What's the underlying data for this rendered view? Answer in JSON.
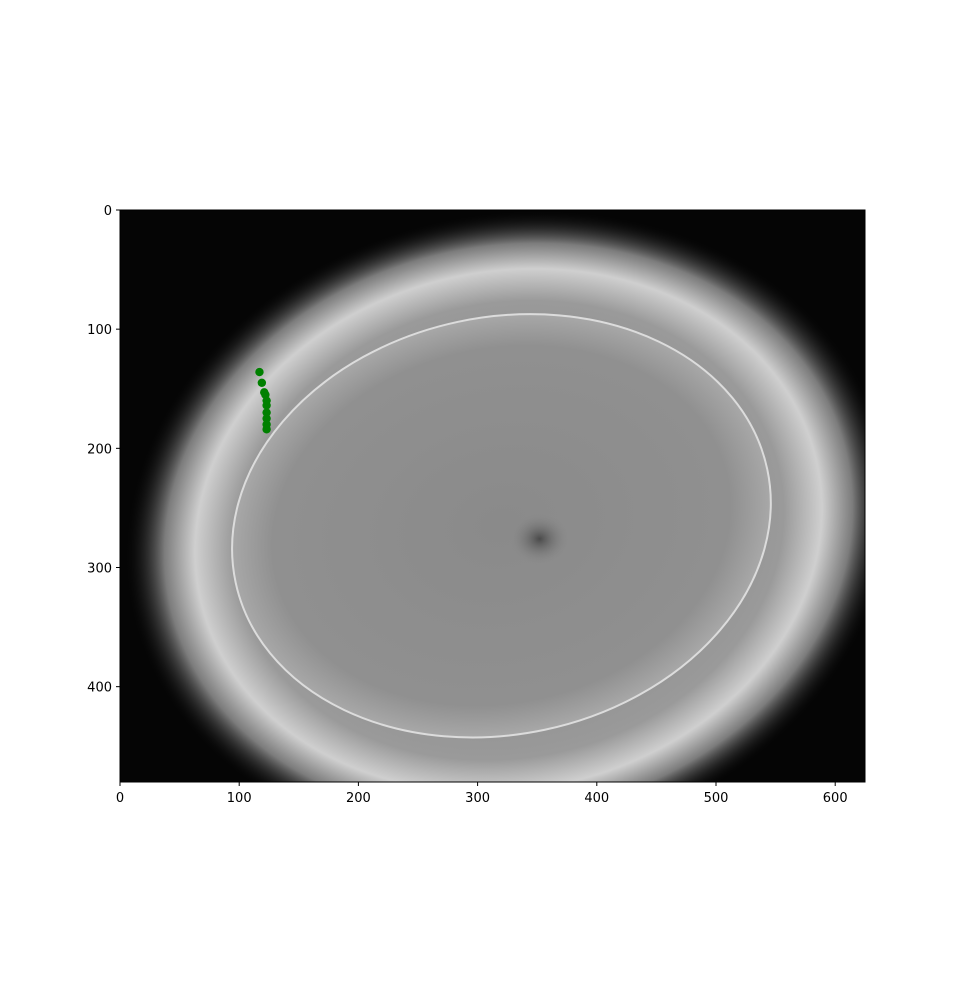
{
  "chart_data": {
    "type": "scatter",
    "title": "",
    "xlabel": "",
    "ylabel": "",
    "xlim": [
      0,
      625
    ],
    "ylim": [
      480,
      0
    ],
    "x_ticks": [
      0,
      100,
      200,
      300,
      400,
      500,
      600
    ],
    "y_ticks": [
      0,
      100,
      200,
      300,
      400
    ],
    "background": "grayscale-image",
    "ellipse": {
      "cx": 320,
      "cy": 265,
      "rx": 228,
      "ry": 175,
      "rotation_deg": -12
    },
    "dark_spot": {
      "x": 352,
      "y": 276
    },
    "series": [
      {
        "name": "points",
        "color": "#008000",
        "x": [
          117,
          119,
          121,
          122,
          123,
          123,
          123,
          123,
          123,
          123
        ],
        "y": [
          136,
          145,
          153,
          155,
          160,
          164,
          170,
          175,
          180,
          184
        ]
      }
    ]
  }
}
